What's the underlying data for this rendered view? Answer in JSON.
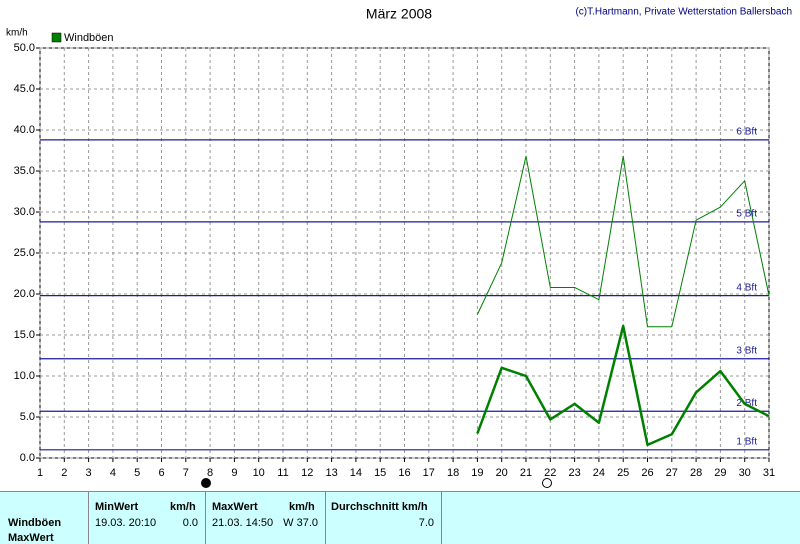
{
  "chart_data": {
    "type": "line",
    "title": "März 2008",
    "credit": "(c)T.Hartmann, Private Wetterstation Ballersbach",
    "y_label": "km/h",
    "xlim": [
      1,
      31
    ],
    "xticks": [
      1,
      2,
      3,
      4,
      5,
      6,
      7,
      8,
      9,
      10,
      11,
      12,
      13,
      14,
      15,
      16,
      17,
      18,
      19,
      20,
      21,
      22,
      23,
      24,
      25,
      26,
      27,
      28,
      29,
      30,
      31
    ],
    "ylim": [
      0,
      50
    ],
    "yticks": [
      {
        "value": 0,
        "label": "0.0"
      },
      {
        "value": 5,
        "label": "5.0"
      },
      {
        "value": 10,
        "label": "10.0"
      },
      {
        "value": 15,
        "label": "15.0"
      },
      {
        "value": 20,
        "label": "20.0"
      },
      {
        "value": 25,
        "label": "25.0"
      },
      {
        "value": 30,
        "label": "30.0"
      },
      {
        "value": 35,
        "label": "35.0"
      },
      {
        "value": 40,
        "label": "40.0"
      },
      {
        "value": 45,
        "label": "45.0"
      },
      {
        "value": 50,
        "label": "50.0"
      }
    ],
    "grid": true,
    "x": [
      19,
      20,
      21,
      22,
      23,
      24,
      25,
      26,
      27,
      28,
      29,
      30,
      31
    ],
    "series": [
      {
        "name": "Windböen",
        "color": "#008000",
        "width": 2.5,
        "values": [
          3.0,
          11.0,
          10.0,
          4.7,
          6.6,
          4.3,
          16.1,
          1.6,
          2.9,
          8.0,
          10.6,
          6.6,
          5.1
        ]
      },
      {
        "color": "#008000",
        "width": 1,
        "values": [
          17.5,
          23.8,
          36.8,
          20.8,
          20.8,
          19.3,
          36.8,
          16.0,
          16.0,
          29.0,
          30.6,
          33.8,
          19.8
        ]
      }
    ],
    "reference_color": "#1c1c9c",
    "reference_lines": [
      {
        "value": 1.0,
        "label": "1 Bft"
      },
      {
        "value": 5.7,
        "label": "2 Bft"
      },
      {
        "value": 12.1,
        "label": "3 Bft"
      },
      {
        "value": 19.8,
        "label": "4 Bft"
      },
      {
        "value": 28.8,
        "label": "5 Bft"
      },
      {
        "value": 38.8,
        "label": "6 Bft"
      }
    ]
  },
  "table": {
    "headers": [
      "MinWert",
      "km/h",
      "MaxWert",
      "km/h",
      "Durchschnitt km/h"
    ],
    "rows": [
      [
        "Windböen",
        "19.03.  20:10",
        "0.0",
        "21.03.  14:50",
        "W 37.0",
        "7.0"
      ],
      [
        "MaxWert"
      ]
    ]
  }
}
